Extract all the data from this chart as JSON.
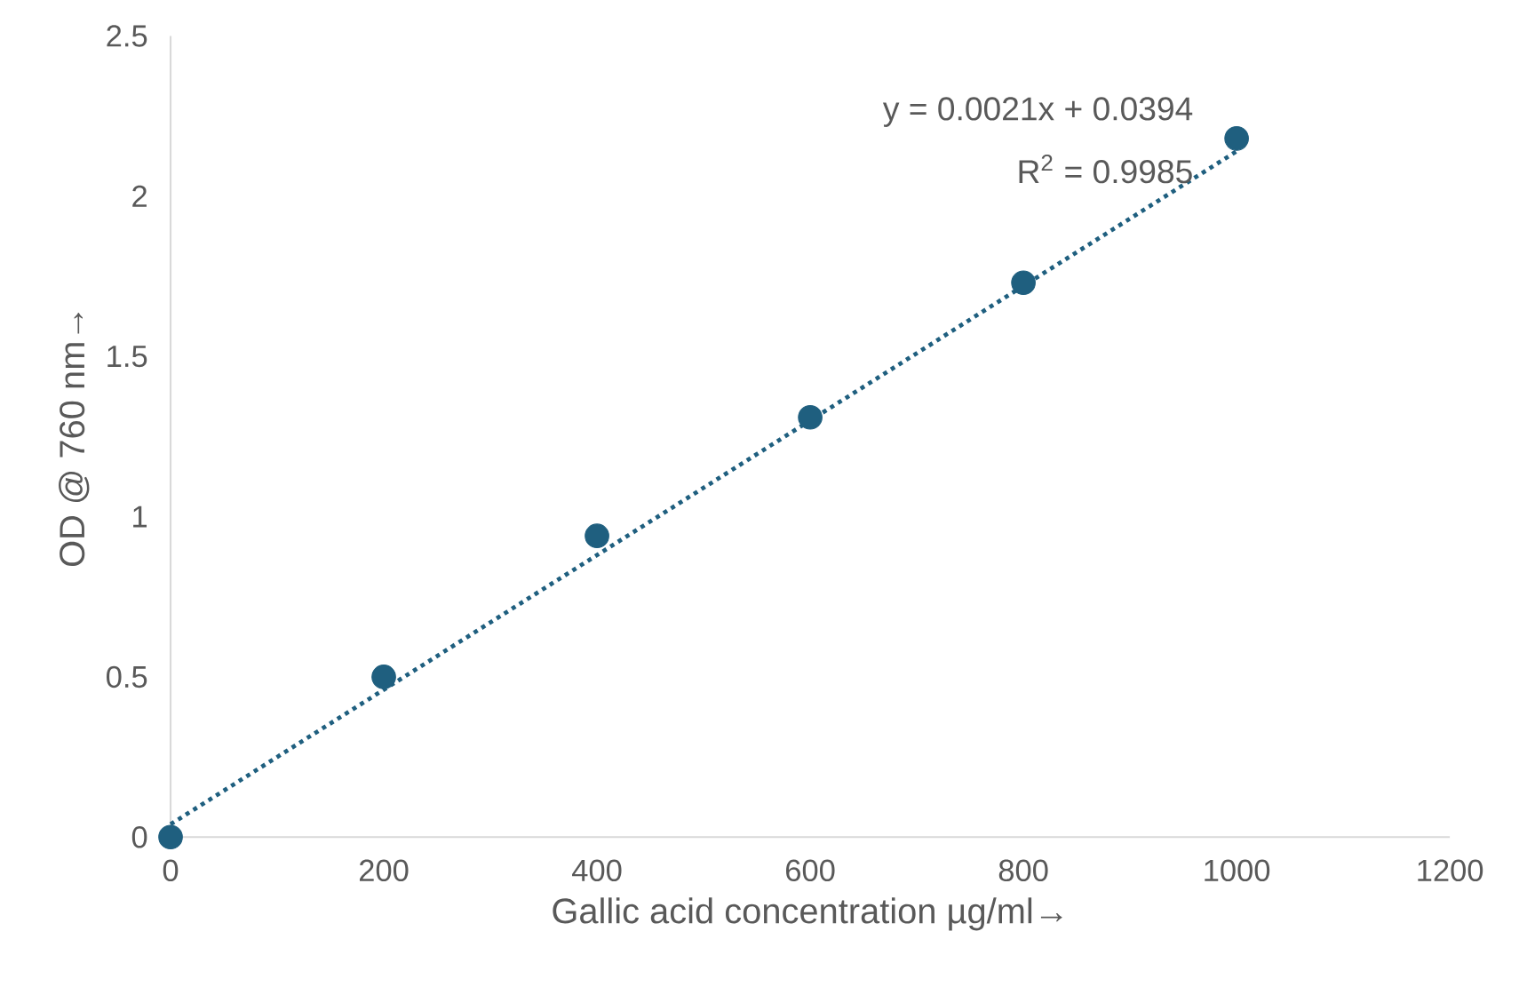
{
  "chart_data": {
    "type": "scatter",
    "xlabel": "Gallic acid concentration µg/ml→",
    "ylabel": "OD @ 760 nm→",
    "xlim": [
      0,
      1200
    ],
    "xticks": [
      0,
      200,
      400,
      600,
      800,
      1000,
      1200
    ],
    "ylim": [
      0,
      2.5
    ],
    "yticks": [
      0,
      0.5,
      1,
      1.5,
      2,
      2.5
    ],
    "annotations": [
      "y = 0.0021x + 0.0394",
      "R$^{2}$ = 0.9985"
    ],
    "series": [
      {
        "color": "#1f5f7f",
        "marker": "circle",
        "x": [
          0,
          200,
          400,
          600,
          800,
          1000
        ],
        "values": [
          0,
          0.5,
          0.94,
          1.31,
          1.73,
          2.18
        ]
      },
      {
        "type": "line",
        "color": "#1f5f7f",
        "line_style": "dotted",
        "marker": "none",
        "x": [
          0,
          1000
        ],
        "values": [
          0.04,
          2.14
        ]
      }
    ]
  }
}
